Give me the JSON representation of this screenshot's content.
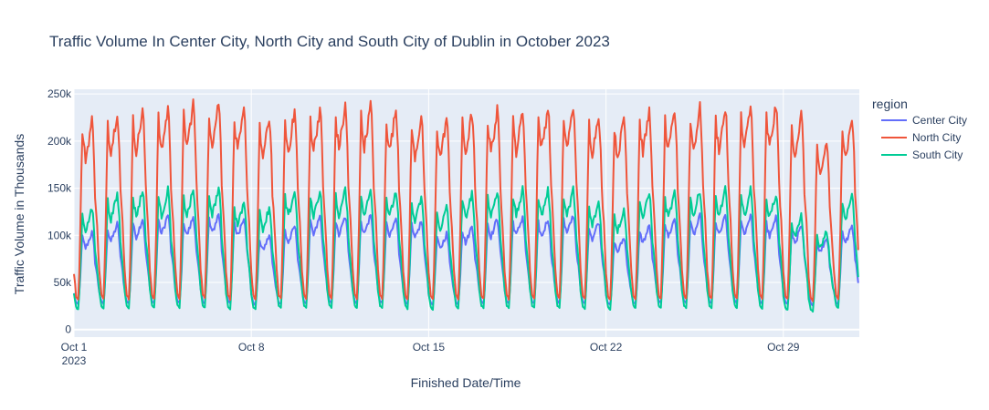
{
  "chart_data": {
    "type": "line",
    "title": "Traffic Volume In Center City, North City and South City of Dublin in October 2023",
    "xlabel": "Finished Date/Time",
    "ylabel": "Traffic Volume in Thousands",
    "x_range": [
      "2023-10-01",
      "2023-11-01"
    ],
    "ylim": [
      -8000,
      255000
    ],
    "x_ticks": [
      {
        "date": "2023-10-01",
        "label": "Oct 1",
        "sublabel": "2023"
      },
      {
        "date": "2023-10-08",
        "label": "Oct 8",
        "sublabel": ""
      },
      {
        "date": "2023-10-15",
        "label": "Oct 15",
        "sublabel": ""
      },
      {
        "date": "2023-10-22",
        "label": "Oct 22",
        "sublabel": ""
      },
      {
        "date": "2023-10-29",
        "label": "Oct 29",
        "sublabel": ""
      }
    ],
    "y_ticks": [
      {
        "value": 0,
        "label": "0"
      },
      {
        "value": 50000,
        "label": "50k"
      },
      {
        "value": 100000,
        "label": "100k"
      },
      {
        "value": 150000,
        "label": "150k"
      },
      {
        "value": 200000,
        "label": "200k"
      },
      {
        "value": 250000,
        "label": "250k"
      }
    ],
    "legend": {
      "title": "region",
      "position": "right"
    },
    "grid": true,
    "series": [
      {
        "name": "Center City",
        "color": "#636efa",
        "daily_peak": [
          103000,
          112000,
          118000,
          122000,
          120000,
          123000,
          120000,
          100000,
          110000,
          120000,
          120000,
          122000,
          118000,
          115000,
          102000,
          110000,
          118000,
          120000,
          118000,
          122000,
          115000,
          98000,
          110000,
          118000,
          120000,
          120000,
          122000,
          118000,
          110000,
          98000,
          110000
        ],
        "night_min": 20000
      },
      {
        "name": "North City",
        "color": "#ef553b",
        "daily_peak": [
          222000,
          232000,
          233000,
          235000,
          240000,
          242000,
          232000,
          225000,
          232000,
          235000,
          237000,
          238000,
          234000,
          225000,
          225000,
          230000,
          232000,
          232000,
          236000,
          237000,
          230000,
          225000,
          232000,
          232000,
          235000,
          235000,
          237000,
          238000,
          228000,
          200000,
          225000
        ],
        "night_min": 15000
      },
      {
        "name": "South City",
        "color": "#00cc96",
        "daily_peak": [
          128000,
          143000,
          148000,
          148000,
          148000,
          150000,
          135000,
          130000,
          147000,
          148000,
          148000,
          148000,
          147000,
          140000,
          130000,
          145000,
          148000,
          148000,
          148000,
          148000,
          135000,
          128000,
          145000,
          145000,
          148000,
          148000,
          148000,
          145000,
          120000,
          105000,
          143000
        ],
        "night_min": 12000
      }
    ]
  }
}
